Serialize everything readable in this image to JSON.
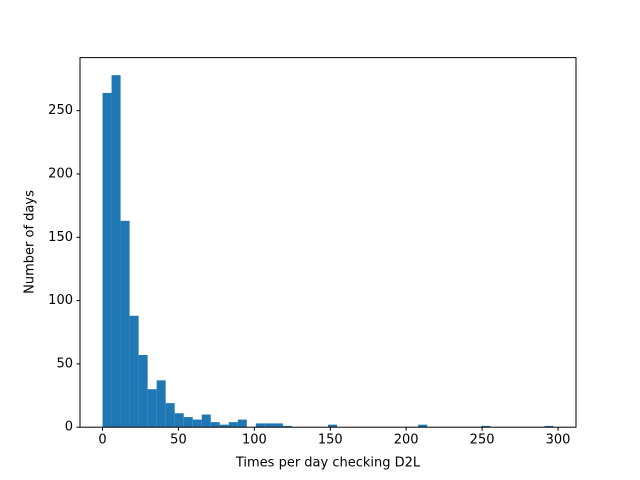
{
  "chart_data": {
    "type": "histogram",
    "xlabel": "Times per day checking D2L",
    "ylabel": "Number of days",
    "color": "#1f77b4",
    "bins": [
      0,
      5.94,
      11.88,
      17.82,
      23.76,
      29.7,
      35.64,
      41.58,
      47.52,
      53.46,
      59.4,
      65.34,
      71.28,
      77.22,
      83.16,
      89.1,
      95.04,
      100.98,
      106.92,
      112.86,
      118.8,
      124.74,
      130.68,
      136.62,
      142.56,
      148.5,
      154.44,
      160.38,
      166.32,
      172.26,
      178.2,
      184.14,
      190.08,
      196.02,
      201.96,
      207.9,
      213.84,
      219.78,
      225.72,
      231.66,
      237.6,
      243.54,
      249.48,
      255.42,
      261.36,
      267.3,
      273.24,
      279.18,
      285.12,
      291.06,
      297
    ],
    "values": [
      264,
      278,
      163,
      88,
      57,
      30,
      37,
      19,
      11,
      8,
      6,
      10,
      4,
      2,
      4,
      6,
      0,
      3,
      3,
      3,
      1,
      0,
      0,
      0,
      0,
      2,
      0,
      0,
      0,
      0,
      0,
      0,
      0,
      0,
      0,
      2,
      0,
      0,
      0,
      0,
      0,
      0,
      1,
      0,
      0,
      0,
      0,
      0,
      0,
      1
    ],
    "xlim": [
      -14.85,
      311.85
    ],
    "ylim": [
      0,
      291.9
    ],
    "xticks": [
      0,
      50,
      100,
      150,
      200,
      250,
      300
    ],
    "yticks": [
      0,
      50,
      100,
      150,
      200,
      250
    ]
  }
}
